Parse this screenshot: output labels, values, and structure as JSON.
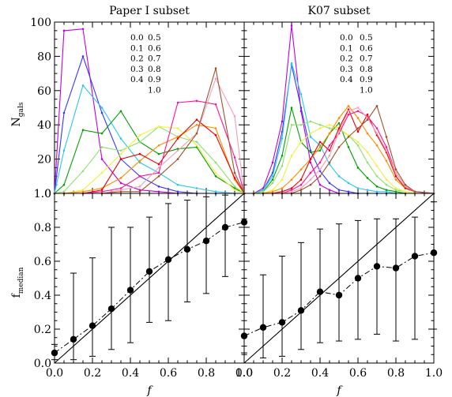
{
  "figure": {
    "panel_titles": [
      "Paper I subset",
      "K07 subset"
    ],
    "top_ylabel_main": "N",
    "top_ylabel_sub": "gals",
    "bottom_ylabel_main": "f",
    "bottom_ylabel_sub": "median",
    "xlabel": "f"
  },
  "legend": {
    "labels": [
      "0.0",
      "0.1",
      "0.2",
      "0.3",
      "0.4",
      "0.5",
      "0.6",
      "0.7",
      "0.8",
      "0.9",
      "1.0"
    ],
    "colors": [
      "#c000e0",
      "#3838ff",
      "#28c8f0",
      "#00a000",
      "#90e070",
      "#f0f040",
      "#ff8c00",
      "#e80000",
      "#ff1493",
      "#f4a0b8",
      "#a0522d"
    ]
  },
  "chart_data": [
    {
      "type": "line",
      "title": "Paper I subset",
      "ylabel": "N_gals",
      "xlim": [
        0.0,
        1.0
      ],
      "ylim": [
        0,
        100
      ],
      "yticks": [
        0,
        20,
        40,
        60,
        80,
        100
      ],
      "x": [
        0.0,
        0.05,
        0.15,
        0.25,
        0.35,
        0.45,
        0.55,
        0.65,
        0.75,
        0.85,
        0.95,
        1.0
      ],
      "series": [
        {
          "name": "0.0",
          "color": "#c000e0",
          "values": [
            0,
            95,
            96,
            20,
            6,
            2,
            1,
            0,
            0,
            0,
            0,
            0
          ]
        },
        {
          "name": "0.1",
          "color": "#3838ff",
          "values": [
            0,
            47,
            80,
            47,
            20,
            10,
            4,
            1,
            0,
            0,
            0,
            0
          ]
        },
        {
          "name": "0.2",
          "color": "#28c8f0",
          "values": [
            0,
            25,
            63,
            50,
            32,
            18,
            12,
            5,
            3,
            1,
            0,
            0
          ]
        },
        {
          "name": "0.3",
          "color": "#00a000",
          "values": [
            0,
            5,
            37,
            35,
            48,
            30,
            23,
            26,
            27,
            10,
            3,
            0
          ]
        },
        {
          "name": "0.4",
          "color": "#90e070",
          "values": [
            0,
            1,
            13,
            27,
            25,
            30,
            39,
            33,
            30,
            18,
            4,
            0
          ]
        },
        {
          "name": "0.5",
          "color": "#f0f040",
          "values": [
            0,
            0,
            2,
            12,
            23,
            34,
            39,
            38,
            28,
            12,
            2,
            0
          ]
        },
        {
          "name": "0.6",
          "color": "#ff8c00",
          "values": [
            0,
            0,
            1,
            3,
            9,
            19,
            28,
            33,
            40,
            38,
            8,
            0
          ]
        },
        {
          "name": "0.7",
          "color": "#e80000",
          "values": [
            0,
            0,
            0,
            2,
            20,
            23,
            17,
            32,
            43,
            34,
            9,
            0
          ]
        },
        {
          "name": "0.8",
          "color": "#ff1493",
          "values": [
            0,
            0,
            0,
            1,
            3,
            10,
            12,
            53,
            54,
            52,
            21,
            0
          ]
        },
        {
          "name": "0.9",
          "color": "#f4a0b8",
          "values": [
            0,
            0,
            0,
            0,
            2,
            4,
            15,
            25,
            35,
            67,
            45,
            0
          ]
        },
        {
          "name": "1.0",
          "color": "#a0522d",
          "values": [
            0,
            0,
            0,
            0,
            1,
            1,
            10,
            20,
            35,
            73,
            12,
            0
          ]
        }
      ]
    },
    {
      "type": "line",
      "title": "K07 subset",
      "ylabel": "N_gals",
      "xlim": [
        0.0,
        1.0
      ],
      "ylim": [
        0,
        100
      ],
      "x": [
        0.0,
        0.05,
        0.1,
        0.15,
        0.2,
        0.25,
        0.3,
        0.35,
        0.4,
        0.45,
        0.5,
        0.55,
        0.6,
        0.65,
        0.7,
        0.75,
        0.8,
        0.85,
        0.9,
        1.0
      ],
      "series": [
        {
          "name": "0.0",
          "color": "#c000e0",
          "values": [
            0,
            0,
            3,
            18,
            42,
            98,
            48,
            18,
            5,
            2,
            0,
            0,
            0,
            0,
            0,
            0,
            0,
            0,
            0,
            0
          ]
        },
        {
          "name": "0.1",
          "color": "#3838ff",
          "values": [
            0,
            0,
            2,
            12,
            36,
            75,
            50,
            25,
            13,
            6,
            2,
            1,
            0,
            0,
            0,
            0,
            0,
            0,
            0,
            0
          ]
        },
        {
          "name": "0.2",
          "color": "#28c8f0",
          "values": [
            0,
            0,
            2,
            10,
            32,
            76,
            58,
            33,
            28,
            17,
            10,
            6,
            3,
            2,
            1,
            1,
            0,
            0,
            0,
            0
          ]
        },
        {
          "name": "0.3",
          "color": "#00a000",
          "values": [
            0,
            0,
            1,
            8,
            22,
            50,
            30,
            24,
            25,
            35,
            41,
            27,
            15,
            9,
            4,
            2,
            1,
            0,
            0,
            0
          ]
        },
        {
          "name": "0.4",
          "color": "#90e070",
          "values": [
            0,
            0,
            1,
            6,
            16,
            40,
            40,
            42,
            40,
            38,
            37,
            34,
            28,
            18,
            10,
            5,
            2,
            1,
            0,
            0
          ]
        },
        {
          "name": "0.5",
          "color": "#f0f040",
          "values": [
            0,
            0,
            0,
            2,
            8,
            22,
            30,
            35,
            38,
            40,
            38,
            34,
            30,
            24,
            16,
            8,
            3,
            1,
            0,
            0
          ]
        },
        {
          "name": "0.6",
          "color": "#ff8c00",
          "values": [
            0,
            0,
            0,
            1,
            3,
            8,
            14,
            20,
            27,
            35,
            44,
            51,
            44,
            35,
            28,
            19,
            8,
            3,
            1,
            0
          ]
        },
        {
          "name": "0.7",
          "color": "#e80000",
          "values": [
            0,
            0,
            0,
            0,
            1,
            3,
            8,
            20,
            30,
            25,
            38,
            49,
            36,
            46,
            34,
            24,
            10,
            3,
            1,
            0
          ]
        },
        {
          "name": "0.8",
          "color": "#ff1493",
          "values": [
            0,
            0,
            0,
            0,
            0,
            2,
            5,
            12,
            18,
            28,
            35,
            46,
            48,
            45,
            38,
            27,
            12,
            4,
            1,
            0
          ]
        },
        {
          "name": "0.9",
          "color": "#f4a0b8",
          "values": [
            0,
            0,
            0,
            0,
            0,
            1,
            3,
            8,
            14,
            22,
            36,
            48,
            50,
            44,
            35,
            25,
            12,
            4,
            1,
            0
          ]
        },
        {
          "name": "1.0",
          "color": "#a0522d",
          "values": [
            0,
            0,
            0,
            0,
            0,
            0,
            2,
            5,
            10,
            18,
            27,
            33,
            38,
            43,
            51,
            33,
            14,
            5,
            1,
            0
          ]
        }
      ]
    },
    {
      "type": "scatter",
      "title": "Paper I subset",
      "xlabel": "f",
      "ylabel": "f_median",
      "xlim": [
        0.0,
        1.0
      ],
      "ylim": [
        0.0,
        1.0
      ],
      "xticks": [
        0.0,
        0.2,
        0.4,
        0.6,
        0.8,
        1.0
      ],
      "yticks": [
        0.0,
        0.2,
        0.4,
        0.6,
        0.8,
        1.0
      ],
      "x": [
        0.0,
        0.1,
        0.2,
        0.3,
        0.4,
        0.5,
        0.6,
        0.7,
        0.8,
        0.9,
        1.0
      ],
      "y": [
        0.06,
        0.14,
        0.22,
        0.32,
        0.43,
        0.54,
        0.61,
        0.67,
        0.72,
        0.8,
        0.83
      ],
      "err_low": [
        0.02,
        0.02,
        0.04,
        0.08,
        0.12,
        0.24,
        0.25,
        0.36,
        0.41,
        0.51,
        0.6
      ],
      "err_high": [
        0.11,
        0.53,
        0.62,
        0.8,
        0.8,
        0.86,
        0.94,
        0.96,
        0.98,
        0.99,
        1.0
      ],
      "reference_line": "y = x"
    },
    {
      "type": "scatter",
      "title": "K07 subset",
      "xlabel": "f",
      "ylabel": "f_median",
      "xlim": [
        0.0,
        1.0
      ],
      "ylim": [
        0.0,
        1.0
      ],
      "xticks": [
        0.0,
        0.2,
        0.4,
        0.6,
        0.8,
        1.0
      ],
      "x": [
        0.0,
        0.1,
        0.2,
        0.3,
        0.4,
        0.5,
        0.6,
        0.7,
        0.8,
        0.9,
        1.0
      ],
      "y": [
        0.16,
        0.21,
        0.24,
        0.31,
        0.42,
        0.4,
        0.5,
        0.57,
        0.56,
        0.63,
        0.65
      ],
      "err_low": [
        0.06,
        0.03,
        0.04,
        0.08,
        0.12,
        0.13,
        0.14,
        0.17,
        0.13,
        0.14,
        0.2
      ],
      "err_high": [
        0.2,
        0.52,
        0.63,
        0.71,
        0.79,
        0.82,
        0.84,
        0.85,
        0.85,
        0.86,
        0.95
      ],
      "reference_line": "y = x"
    }
  ]
}
